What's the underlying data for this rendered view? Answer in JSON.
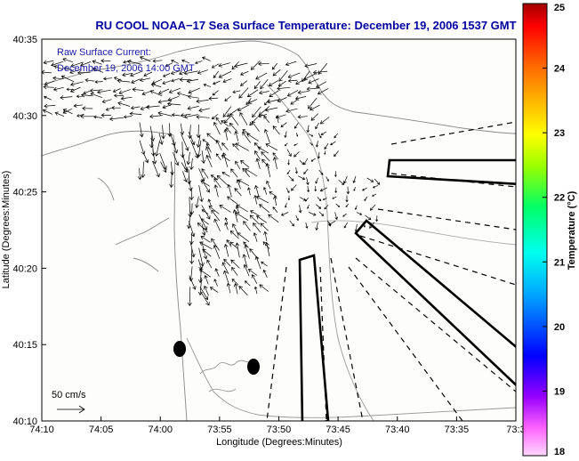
{
  "title": "RU COOL  NOAA−17  Sea Surface Temperature:  December 19, 2006 1537 GMT",
  "annotation": {
    "line1": "Raw Surface Current:",
    "line2": "December 19, 2006 14:00 GMT"
  },
  "scale_label": "50 cm/s",
  "axes": {
    "xlabel": "Longitude (Degrees:Minutes)",
    "ylabel": "Latitude (Degrees:Minutes)",
    "xticks": [
      "74:10",
      "74:05",
      "74:00",
      "73:55",
      "73:50",
      "73:45",
      "73:40",
      "73:35",
      "73:3"
    ],
    "yticks": [
      "40:35",
      "40:30",
      "40:25",
      "40:20",
      "40:15",
      "40:10"
    ]
  },
  "colorbar": {
    "label": "Temperature (°C)",
    "ticks": [
      "25",
      "24",
      "23",
      "22",
      "21",
      "20",
      "19",
      "18"
    ],
    "min": 18,
    "max": 25
  },
  "colors": {
    "title": "#0000a0",
    "annotation": "#1a1aa8",
    "land_contours": "#888888",
    "vectors": "#000000"
  }
}
